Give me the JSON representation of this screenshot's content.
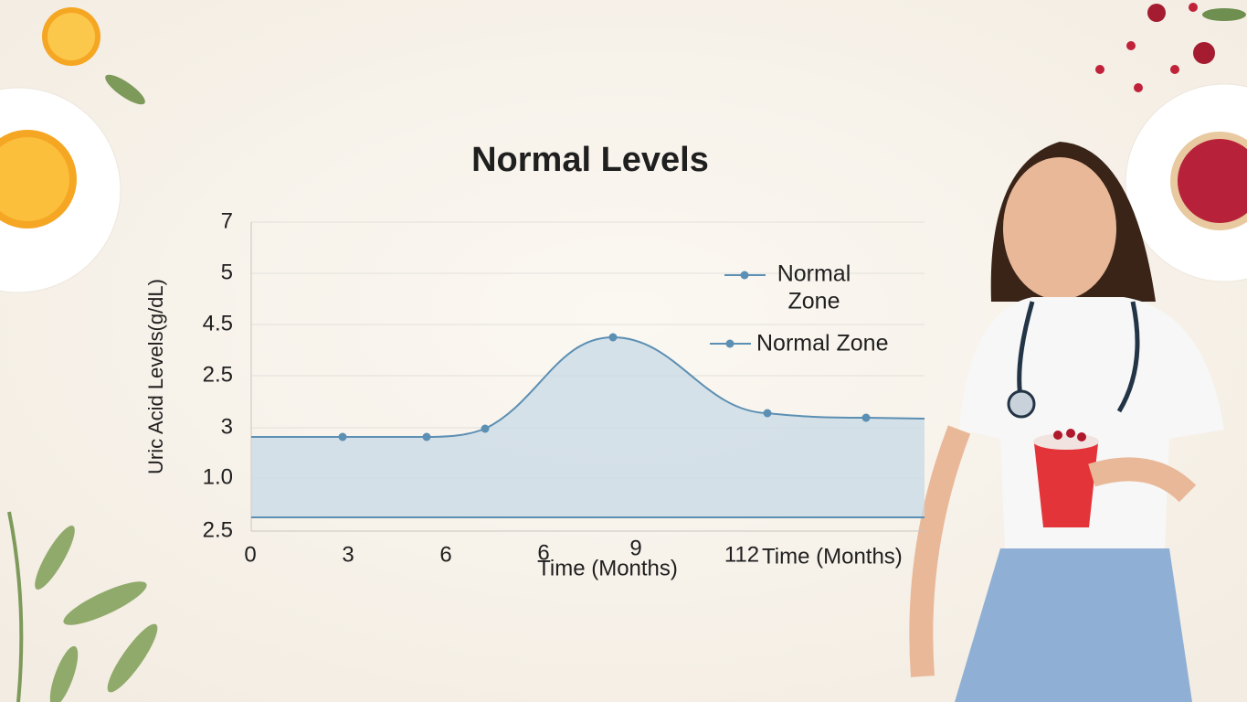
{
  "title": "Normal Levels",
  "y_axis_label": "Uric Acid Levels(g/dL)",
  "y_labels": [
    "7",
    "5",
    "4.5",
    "2.5",
    "3",
    "1.0",
    "2.5"
  ],
  "x_labels": [
    "0",
    "3",
    "6",
    "6",
    "9",
    "112",
    "Time (Months)"
  ],
  "x_axis_label": "Time (Months)",
  "legend": [
    {
      "lines": [
        "Normal",
        "Zone"
      ]
    },
    {
      "lines": [
        "Normal Zone"
      ]
    }
  ]
}
